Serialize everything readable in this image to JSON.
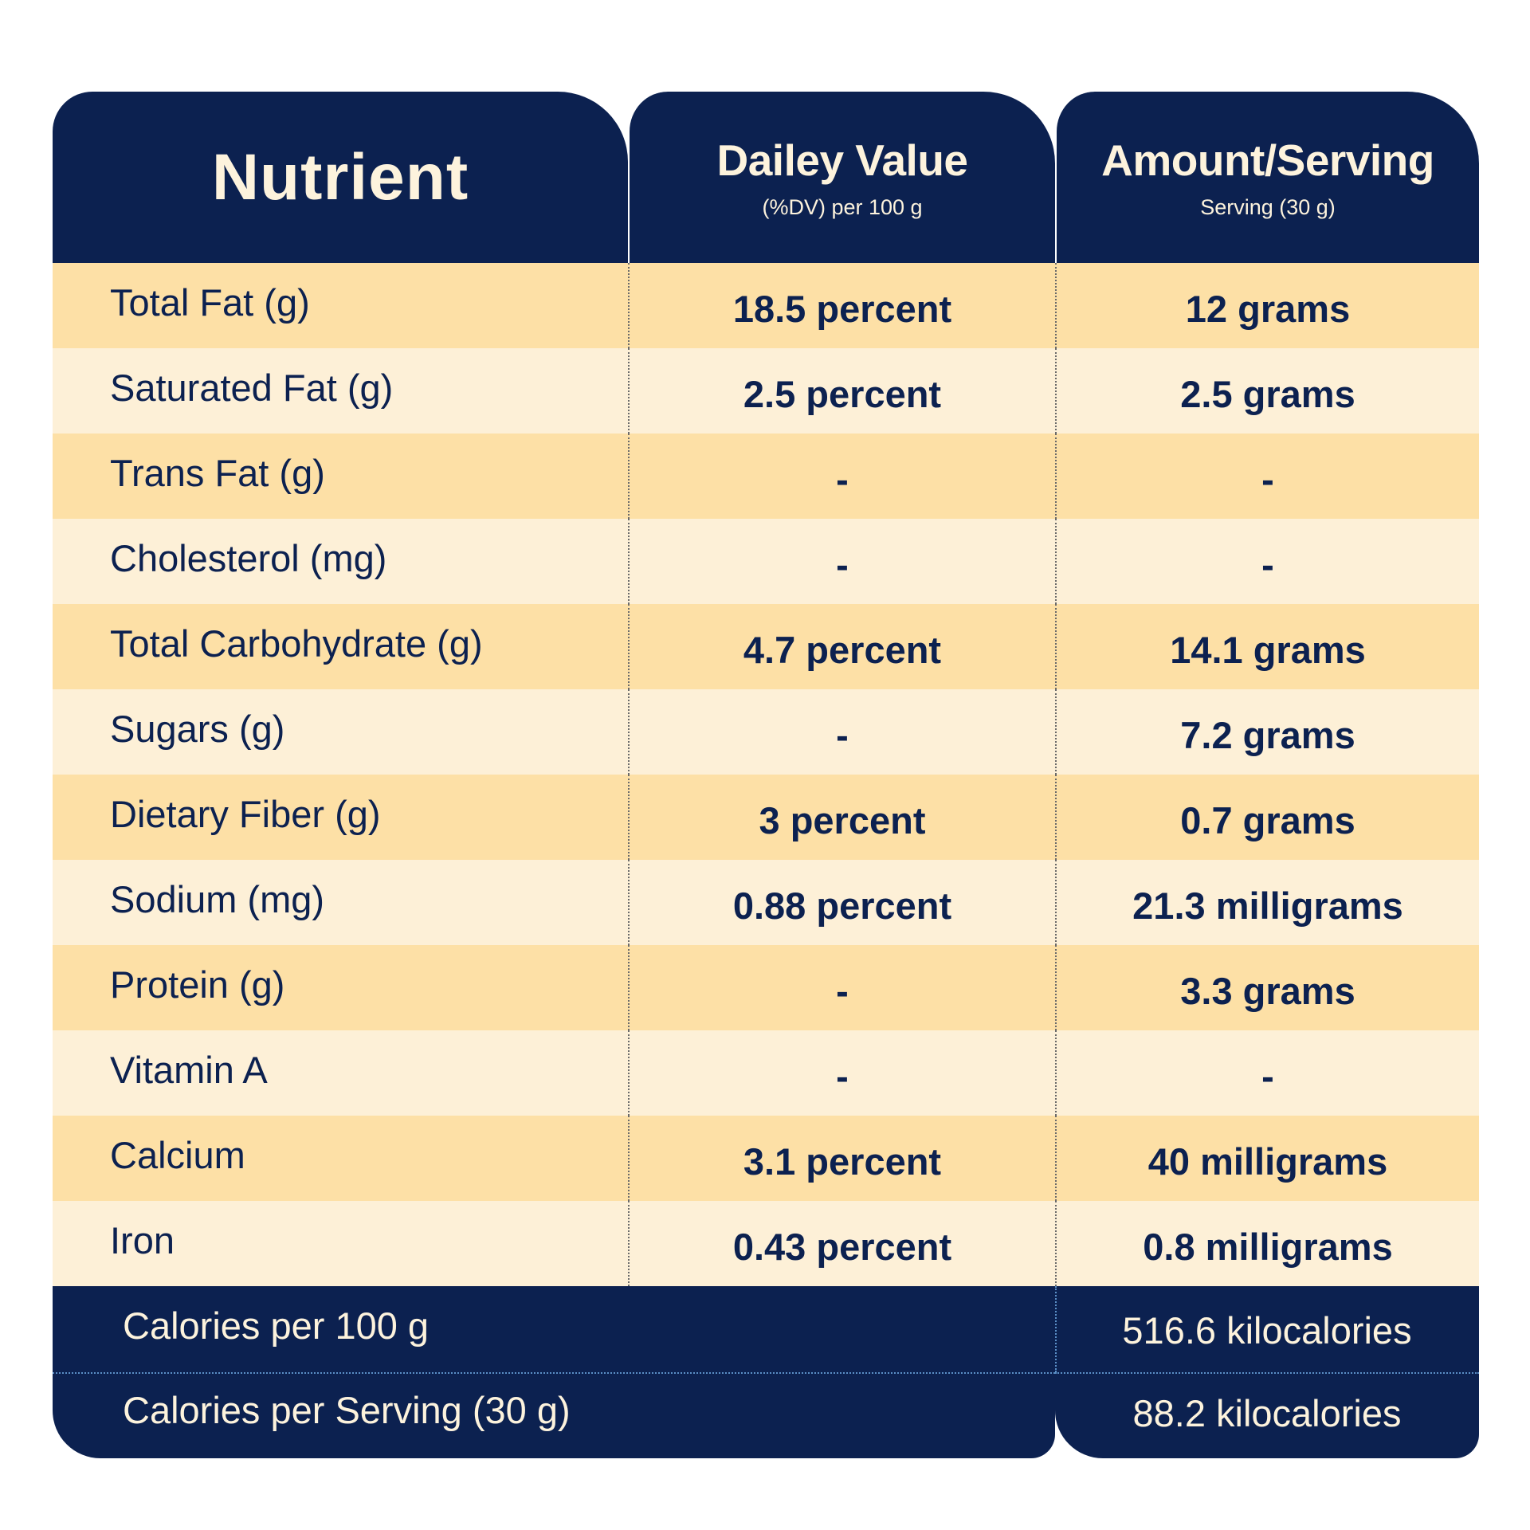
{
  "header": {
    "nutrient_title": "Nutrient",
    "dv_title": "Dailey Value",
    "dv_subtitle": "(%DV) per 100 g",
    "amount_title": "Amount/Serving",
    "amount_subtitle": "Serving (30 g)"
  },
  "rows": [
    {
      "name": "Total Fat (g)",
      "dv": "18.5 percent",
      "amount": "12 grams"
    },
    {
      "name": "Saturated Fat (g)",
      "dv": "2.5 percent",
      "amount": "2.5 grams"
    },
    {
      "name": "Trans Fat (g)",
      "dv": "-",
      "amount": "-"
    },
    {
      "name": "Cholesterol (mg)",
      "dv": "-",
      "amount": "-"
    },
    {
      "name": "Total Carbohydrate (g)",
      "dv": "4.7 percent",
      "amount": "14.1 grams"
    },
    {
      "name": "Sugars (g)",
      "dv": "-",
      "amount": "7.2 grams"
    },
    {
      "name": "Dietary Fiber (g)",
      "dv": "3 percent",
      "amount": "0.7 grams"
    },
    {
      "name": "Sodium (mg)",
      "dv": "0.88 percent",
      "amount": "21.3 milligrams"
    },
    {
      "name": "Protein (g)",
      "dv": "-",
      "amount": "3.3 grams"
    },
    {
      "name": "Vitamin A",
      "dv": "-",
      "amount": "-"
    },
    {
      "name": "Calcium",
      "dv": "3.1 percent",
      "amount": "40 milligrams"
    },
    {
      "name": "Iron",
      "dv": "0.43 percent",
      "amount": "0.8 milligrams"
    }
  ],
  "footer": {
    "calories_100g_label": "Calories per 100 g",
    "calories_100g_value": "516.6 kilocalories",
    "calories_serving_label": "Calories per Serving (30 g)",
    "calories_serving_value": "88.2 kilocalories"
  },
  "colors": {
    "navy": "#0c2150",
    "row_dark": "#fde0a6",
    "row_light": "#fdf0d7",
    "header_text": "#fdf3dd"
  }
}
